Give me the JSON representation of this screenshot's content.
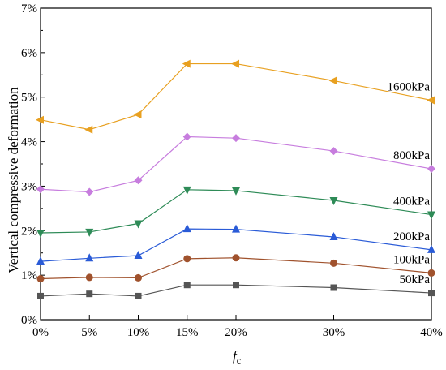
{
  "chart_data": {
    "type": "line",
    "xlabel": "f",
    "xlabel_subscript": "c",
    "ylabel": "Vertical compressive deformation",
    "x": [
      0,
      5,
      10,
      15,
      20,
      30,
      40
    ],
    "x_tick_labels": [
      "0%",
      "5%",
      "10%",
      "15%",
      "20%",
      "30%",
      "40%"
    ],
    "xlim": [
      0,
      40
    ],
    "ylim": [
      0,
      7
    ],
    "y_ticks": [
      0,
      1,
      2,
      3,
      4,
      5,
      6,
      7
    ],
    "y_tick_labels": [
      "0%",
      "1%",
      "2%",
      "3%",
      "4%",
      "5%",
      "6%",
      "7%"
    ],
    "y_unit": "%",
    "grid": false,
    "series": [
      {
        "name": "50kPa",
        "color": "#555555",
        "marker": "square",
        "values": [
          0.53,
          0.58,
          0.53,
          0.78,
          0.78,
          0.72,
          0.6
        ]
      },
      {
        "name": "100kPa",
        "color": "#a0522d",
        "marker": "circle",
        "values": [
          0.92,
          0.95,
          0.94,
          1.37,
          1.39,
          1.27,
          1.05
        ]
      },
      {
        "name": "200kPa",
        "color": "#2a5bd7",
        "marker": "triangle-up",
        "values": [
          1.31,
          1.38,
          1.44,
          2.04,
          2.03,
          1.86,
          1.57
        ]
      },
      {
        "name": "400kPa",
        "color": "#2e8b57",
        "marker": "triangle-down",
        "values": [
          1.95,
          1.97,
          2.16,
          2.92,
          2.9,
          2.68,
          2.36
        ]
      },
      {
        "name": "800kPa",
        "color": "#c77dde",
        "marker": "diamond",
        "values": [
          2.93,
          2.87,
          3.13,
          4.11,
          4.08,
          3.79,
          3.39
        ]
      },
      {
        "name": "1600kPa",
        "color": "#e8a020",
        "marker": "triangle-left",
        "values": [
          4.49,
          4.27,
          4.61,
          5.75,
          5.75,
          5.37,
          4.93
        ]
      }
    ]
  }
}
